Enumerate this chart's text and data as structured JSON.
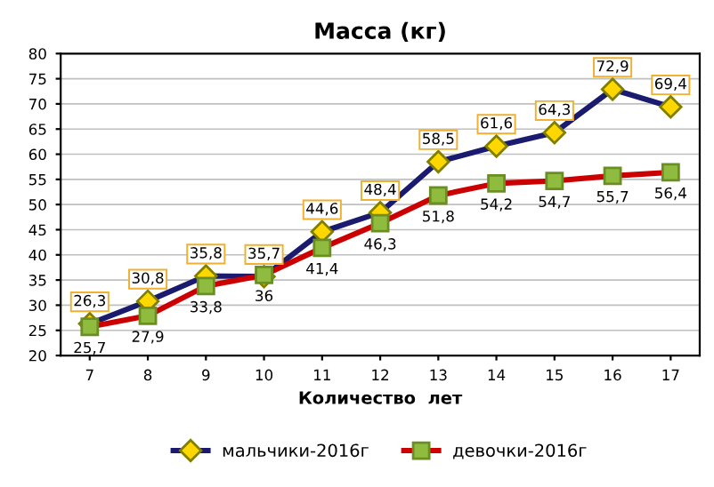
{
  "chart_data": {
    "type": "line",
    "title": "Масса (кг)",
    "xlabel": "Количество  лет",
    "categories": [
      "7",
      "8",
      "9",
      "10",
      "11",
      "12",
      "13",
      "14",
      "15",
      "16",
      "17"
    ],
    "series": [
      {
        "name": "мальчики-2016г",
        "color": "#1a1a6e",
        "marker": "diamond",
        "values": [
          26.3,
          30.8,
          35.8,
          35.7,
          44.6,
          48.4,
          58.5,
          61.6,
          64.3,
          72.9,
          69.4
        ],
        "value_labels": [
          "26,3",
          "30,8",
          "35,8",
          "35,7",
          "44,6",
          "48,4",
          "58,5",
          "61,6",
          "64,3",
          "72,9",
          "69,4"
        ]
      },
      {
        "name": "девочки-2016г",
        "color": "#cc0000",
        "marker": "square",
        "values": [
          25.7,
          27.9,
          33.8,
          36,
          41.4,
          46.3,
          51.8,
          54.2,
          54.7,
          55.7,
          56.4
        ],
        "value_labels": [
          "25,7",
          "27,9",
          "33,8",
          "36",
          "41,4",
          "46,3",
          "51,8",
          "54,2",
          "54,7",
          "55,7",
          "56,4"
        ]
      }
    ],
    "ylim": [
      20,
      80
    ],
    "yticks": [
      20,
      25,
      30,
      35,
      40,
      45,
      50,
      55,
      60,
      65,
      70,
      75,
      80
    ],
    "grid": "y",
    "legend": "bottom",
    "line_style": "solid"
  }
}
